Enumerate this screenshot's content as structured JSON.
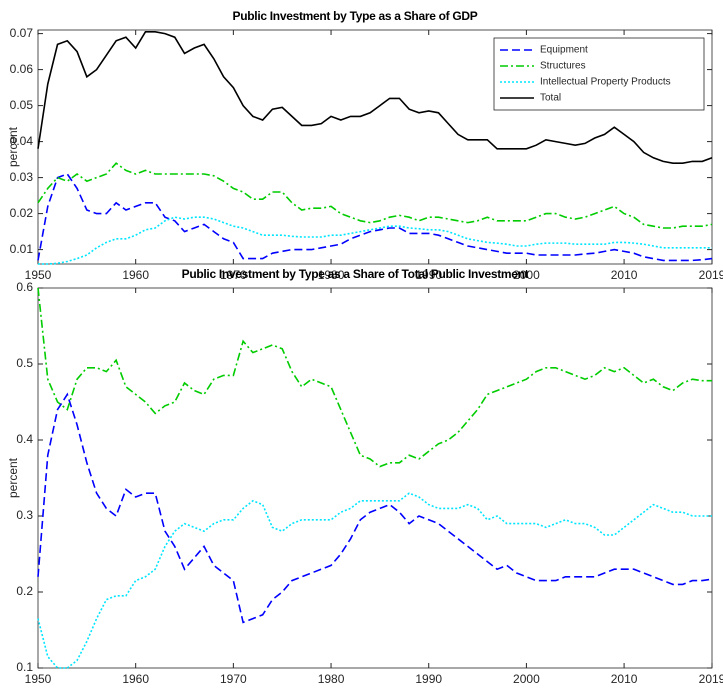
{
  "chart_data": [
    {
      "type": "line",
      "title": "Public Investment by Type as a Share of GDP",
      "ylabel": "percent",
      "x": [
        1950,
        1951,
        1952,
        1953,
        1954,
        1955,
        1956,
        1957,
        1958,
        1959,
        1960,
        1961,
        1962,
        1963,
        1964,
        1965,
        1966,
        1967,
        1968,
        1969,
        1970,
        1971,
        1972,
        1973,
        1974,
        1975,
        1976,
        1977,
        1978,
        1979,
        1980,
        1981,
        1982,
        1983,
        1984,
        1985,
        1986,
        1987,
        1988,
        1989,
        1990,
        1991,
        1992,
        1993,
        1994,
        1995,
        1996,
        1997,
        1998,
        1999,
        2000,
        2001,
        2002,
        2003,
        2004,
        2005,
        2006,
        2007,
        2008,
        2009,
        2010,
        2011,
        2012,
        2013,
        2014,
        2015,
        2016,
        2017,
        2018,
        2019
      ],
      "xlim": [
        1950,
        2019
      ],
      "xticks": [
        1950,
        1960,
        1970,
        1980,
        1990,
        2000,
        2010,
        2019
      ],
      "ylim": [
        0.006,
        0.071
      ],
      "yticks": [
        0.01,
        0.02,
        0.03,
        0.04,
        0.05,
        0.06,
        0.07
      ],
      "legend": "northeast",
      "series": [
        {
          "name": "Equipment",
          "color": "#0000ff",
          "style": "dashed",
          "values": [
            0.007,
            0.022,
            0.03,
            0.031,
            0.027,
            0.021,
            0.02,
            0.02,
            0.023,
            0.021,
            0.022,
            0.023,
            0.023,
            0.019,
            0.018,
            0.015,
            0.016,
            0.017,
            0.015,
            0.013,
            0.012,
            0.0075,
            0.0075,
            0.0075,
            0.009,
            0.0095,
            0.01,
            0.01,
            0.01,
            0.0105,
            0.011,
            0.0115,
            0.013,
            0.014,
            0.015,
            0.0155,
            0.016,
            0.016,
            0.0145,
            0.0145,
            0.0145,
            0.014,
            0.013,
            0.012,
            0.011,
            0.0105,
            0.01,
            0.0095,
            0.009,
            0.009,
            0.009,
            0.0085,
            0.0085,
            0.0085,
            0.0085,
            0.0085,
            0.0088,
            0.009,
            0.0095,
            0.01,
            0.0095,
            0.009,
            0.008,
            0.0075,
            0.007,
            0.007,
            0.007,
            0.007,
            0.0072,
            0.0075
          ]
        },
        {
          "name": "Structures",
          "color": "#00cc00",
          "style": "dashdot",
          "values": [
            0.023,
            0.027,
            0.03,
            0.029,
            0.031,
            0.029,
            0.03,
            0.031,
            0.034,
            0.032,
            0.031,
            0.032,
            0.031,
            0.031,
            0.031,
            0.031,
            0.031,
            0.031,
            0.0305,
            0.029,
            0.027,
            0.026,
            0.024,
            0.024,
            0.026,
            0.026,
            0.023,
            0.021,
            0.0215,
            0.0215,
            0.022,
            0.02,
            0.019,
            0.018,
            0.0175,
            0.018,
            0.019,
            0.0195,
            0.019,
            0.018,
            0.019,
            0.019,
            0.0185,
            0.018,
            0.0175,
            0.018,
            0.019,
            0.018,
            0.018,
            0.018,
            0.018,
            0.019,
            0.02,
            0.02,
            0.019,
            0.0185,
            0.019,
            0.02,
            0.021,
            0.022,
            0.02,
            0.019,
            0.017,
            0.0165,
            0.016,
            0.016,
            0.0165,
            0.0165,
            0.0165,
            0.017
          ]
        },
        {
          "name": "Intellectual Property Products",
          "color": "#00e5ff",
          "style": "dotted",
          "values": [
            0.006,
            0.006,
            0.0062,
            0.0067,
            0.0075,
            0.0085,
            0.0105,
            0.012,
            0.013,
            0.013,
            0.014,
            0.0155,
            0.016,
            0.018,
            0.019,
            0.0185,
            0.019,
            0.019,
            0.0185,
            0.0175,
            0.0165,
            0.016,
            0.015,
            0.014,
            0.014,
            0.014,
            0.0137,
            0.0135,
            0.0135,
            0.0135,
            0.014,
            0.014,
            0.0145,
            0.015,
            0.0155,
            0.016,
            0.0165,
            0.0165,
            0.016,
            0.0158,
            0.0155,
            0.0155,
            0.015,
            0.014,
            0.013,
            0.0125,
            0.012,
            0.0118,
            0.0115,
            0.011,
            0.011,
            0.0115,
            0.0118,
            0.0118,
            0.0118,
            0.0115,
            0.0115,
            0.0115,
            0.0115,
            0.012,
            0.012,
            0.0118,
            0.0115,
            0.011,
            0.0105,
            0.0105,
            0.0105,
            0.0105,
            0.0105,
            0.0105
          ]
        },
        {
          "name": "Total",
          "color": "#000000",
          "style": "solid",
          "values": [
            0.038,
            0.056,
            0.067,
            0.068,
            0.065,
            0.058,
            0.06,
            0.064,
            0.068,
            0.069,
            0.066,
            0.0705,
            0.0705,
            0.07,
            0.069,
            0.0645,
            0.066,
            0.067,
            0.063,
            0.058,
            0.055,
            0.05,
            0.047,
            0.046,
            0.049,
            0.0495,
            0.047,
            0.0445,
            0.0445,
            0.045,
            0.047,
            0.046,
            0.047,
            0.047,
            0.048,
            0.05,
            0.052,
            0.052,
            0.049,
            0.048,
            0.0485,
            0.048,
            0.045,
            0.042,
            0.0405,
            0.0405,
            0.0405,
            0.038,
            0.038,
            0.038,
            0.038,
            0.039,
            0.0405,
            0.04,
            0.0395,
            0.039,
            0.0395,
            0.041,
            0.042,
            0.044,
            0.042,
            0.04,
            0.037,
            0.0355,
            0.0345,
            0.034,
            0.034,
            0.0345,
            0.0345,
            0.0355
          ]
        }
      ]
    },
    {
      "type": "line",
      "title": "Public Investment by Type as a Share of Total Public Investment",
      "ylabel": "percent",
      "x": [
        1950,
        1951,
        1952,
        1953,
        1954,
        1955,
        1956,
        1957,
        1958,
        1959,
        1960,
        1961,
        1962,
        1963,
        1964,
        1965,
        1966,
        1967,
        1968,
        1969,
        1970,
        1971,
        1972,
        1973,
        1974,
        1975,
        1976,
        1977,
        1978,
        1979,
        1980,
        1981,
        1982,
        1983,
        1984,
        1985,
        1986,
        1987,
        1988,
        1989,
        1990,
        1991,
        1992,
        1993,
        1994,
        1995,
        1996,
        1997,
        1998,
        1999,
        2000,
        2001,
        2002,
        2003,
        2004,
        2005,
        2006,
        2007,
        2008,
        2009,
        2010,
        2011,
        2012,
        2013,
        2014,
        2015,
        2016,
        2017,
        2018,
        2019
      ],
      "xlim": [
        1950,
        2019
      ],
      "xticks": [
        1950,
        1960,
        1970,
        1980,
        1990,
        2000,
        2010,
        2019
      ],
      "ylim": [
        0.1,
        0.6
      ],
      "yticks": [
        0.1,
        0.2,
        0.3,
        0.4,
        0.5,
        0.6
      ],
      "series": [
        {
          "color": "#0000ff",
          "style": "dashed",
          "values": [
            0.22,
            0.38,
            0.44,
            0.46,
            0.42,
            0.37,
            0.33,
            0.31,
            0.3,
            0.335,
            0.325,
            0.33,
            0.33,
            0.28,
            0.26,
            0.23,
            0.245,
            0.26,
            0.235,
            0.225,
            0.215,
            0.16,
            0.165,
            0.17,
            0.19,
            0.2,
            0.215,
            0.22,
            0.225,
            0.23,
            0.235,
            0.25,
            0.27,
            0.295,
            0.305,
            0.31,
            0.315,
            0.305,
            0.29,
            0.3,
            0.295,
            0.29,
            0.28,
            0.27,
            0.26,
            0.25,
            0.24,
            0.23,
            0.235,
            0.225,
            0.22,
            0.215,
            0.215,
            0.215,
            0.22,
            0.22,
            0.22,
            0.22,
            0.225,
            0.23,
            0.23,
            0.23,
            0.225,
            0.22,
            0.215,
            0.21,
            0.21,
            0.215,
            0.215,
            0.217
          ]
        },
        {
          "color": "#00cc00",
          "style": "dashdot",
          "values": [
            0.6,
            0.48,
            0.45,
            0.44,
            0.48,
            0.495,
            0.495,
            0.49,
            0.505,
            0.47,
            0.46,
            0.45,
            0.435,
            0.445,
            0.45,
            0.475,
            0.465,
            0.46,
            0.48,
            0.485,
            0.485,
            0.53,
            0.515,
            0.52,
            0.525,
            0.52,
            0.49,
            0.47,
            0.48,
            0.475,
            0.47,
            0.44,
            0.41,
            0.38,
            0.375,
            0.365,
            0.37,
            0.37,
            0.38,
            0.375,
            0.385,
            0.395,
            0.4,
            0.41,
            0.425,
            0.44,
            0.46,
            0.465,
            0.47,
            0.475,
            0.48,
            0.49,
            0.495,
            0.495,
            0.49,
            0.485,
            0.48,
            0.485,
            0.495,
            0.49,
            0.495,
            0.485,
            0.475,
            0.48,
            0.47,
            0.465,
            0.475,
            0.48,
            0.478,
            0.478
          ]
        },
        {
          "color": "#00e5ff",
          "style": "dotted",
          "values": [
            0.165,
            0.115,
            0.1,
            0.1,
            0.11,
            0.135,
            0.165,
            0.19,
            0.195,
            0.195,
            0.215,
            0.22,
            0.23,
            0.26,
            0.28,
            0.29,
            0.285,
            0.28,
            0.29,
            0.295,
            0.295,
            0.31,
            0.32,
            0.315,
            0.285,
            0.28,
            0.29,
            0.295,
            0.295,
            0.295,
            0.295,
            0.305,
            0.31,
            0.32,
            0.32,
            0.32,
            0.32,
            0.32,
            0.33,
            0.325,
            0.315,
            0.31,
            0.31,
            0.31,
            0.315,
            0.31,
            0.295,
            0.3,
            0.29,
            0.29,
            0.29,
            0.29,
            0.285,
            0.29,
            0.295,
            0.29,
            0.29,
            0.285,
            0.275,
            0.275,
            0.285,
            0.295,
            0.305,
            0.315,
            0.31,
            0.305,
            0.305,
            0.3,
            0.3,
            0.3
          ]
        }
      ]
    }
  ]
}
